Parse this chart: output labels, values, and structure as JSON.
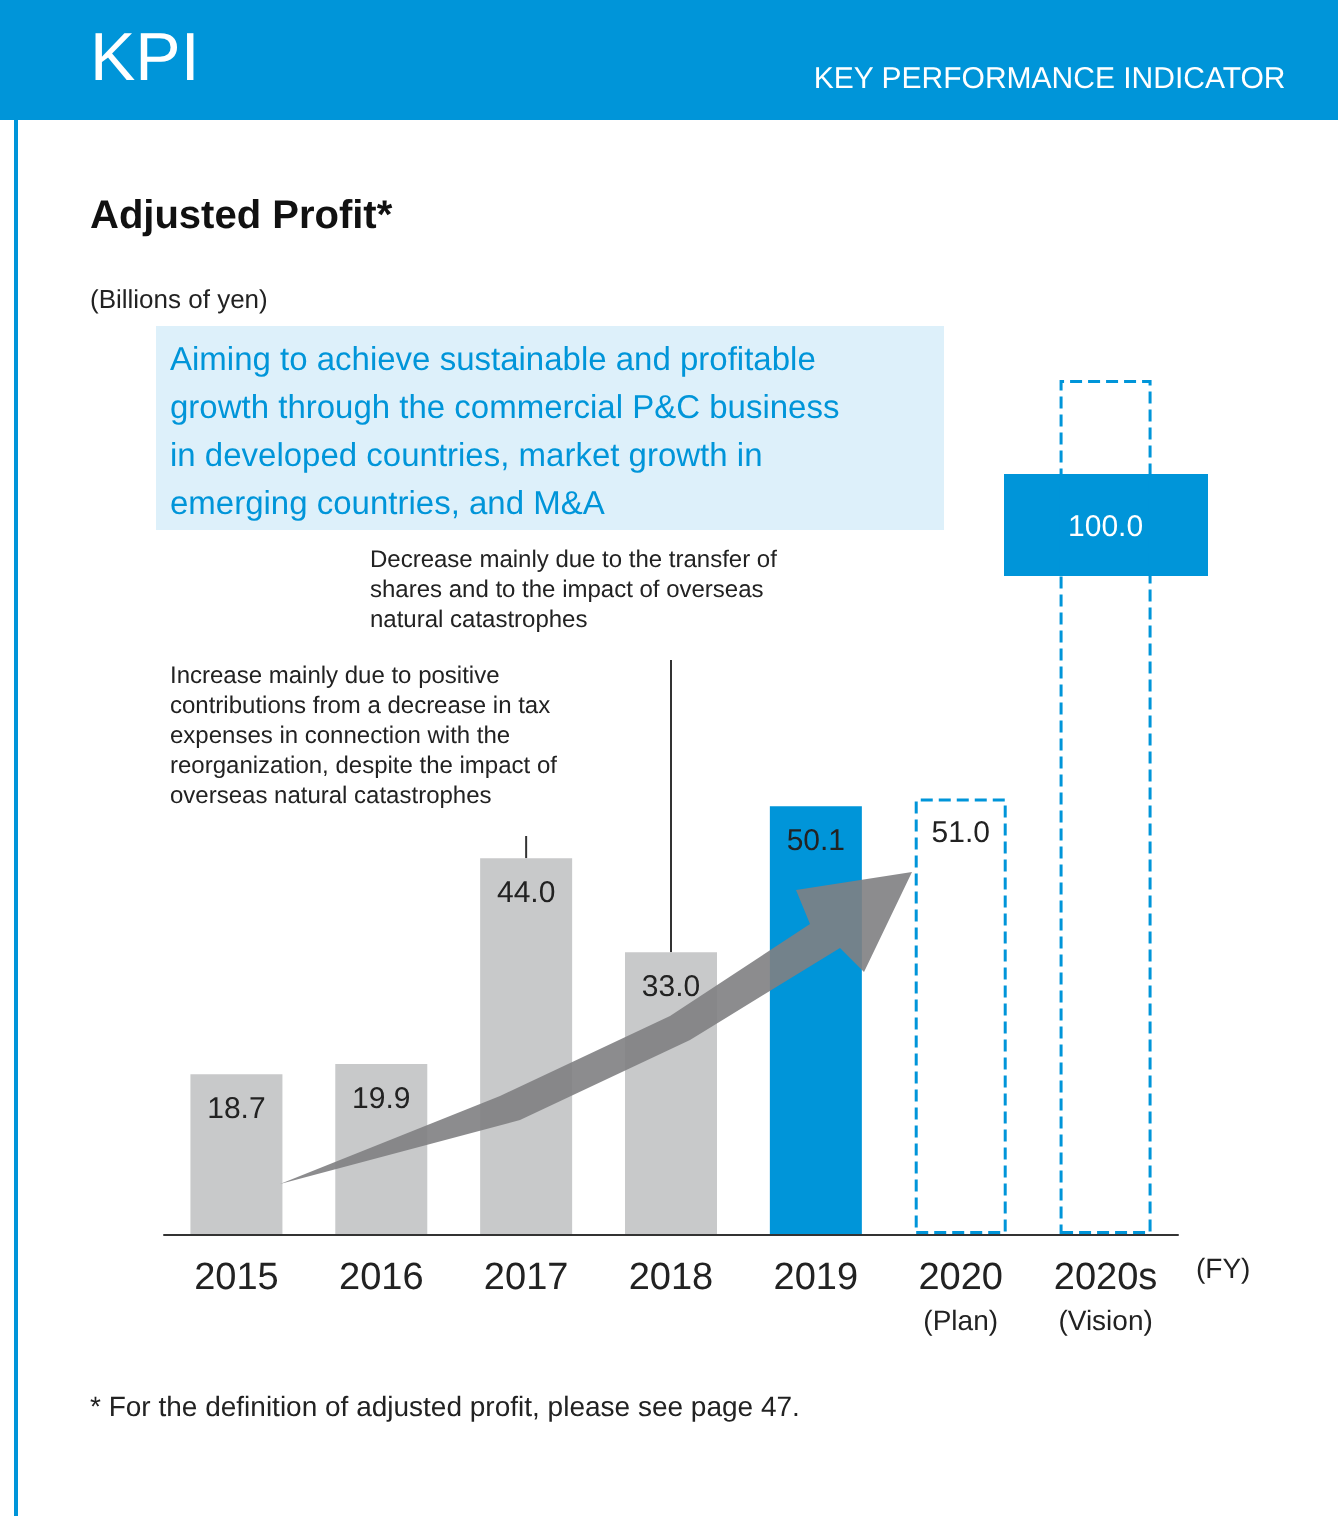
{
  "chart_data": {
    "type": "bar",
    "title": "Adjusted Profit*",
    "ylabel": "(Billions of yen)",
    "xlabel": "(FY)",
    "categories": [
      "2015",
      "2016",
      "2017",
      "2018",
      "2019",
      "2020\n(Plan)",
      "2020s\n(Vision)"
    ],
    "data_labels": true,
    "grid": false,
    "series": [
      {
        "color": "#c8c9ca",
        "values": [
          18.7,
          19.9,
          44.0,
          33.0,
          null,
          null,
          null
        ],
        "value_labels": [
          "18.7",
          "19.9",
          "44.0",
          "33.0",
          null,
          null,
          null
        ]
      },
      {
        "color": "#0095d9",
        "values": [
          null,
          null,
          null,
          null,
          50.1,
          null,
          null
        ],
        "value_labels": [
          null,
          null,
          null,
          null,
          "50.1",
          null,
          null
        ]
      },
      {
        "color": "#0095d9",
        "line_style": "dashed",
        "values": [
          null,
          null,
          null,
          null,
          null,
          51.0,
          100.0
        ],
        "value_labels": [
          null,
          null,
          null,
          null,
          null,
          "51.0",
          "100.0"
        ]
      }
    ],
    "annotations": [
      "KPI",
      "KEY PERFORMANCE INDICATOR",
      "Aiming to achieve sustainable and profitable\ngrowth through the commercial P&C business\nin developed countries, market growth in\nemerging countries, and M&A",
      {
        "text": "Decrease mainly due to the transfer of shares and to the impact of overseas natural catastrophes",
        "x": "2018",
        "y": 33.0
      },
      {
        "text": "Increase mainly due to positive contributions from a decrease in tax expenses in connection with the reorganization, despite the impact of overseas natural catastrophes",
        "x": "2017",
        "y": 44.0
      },
      "* For the definition of adjusted profit, please see page 47."
    ]
  }
}
